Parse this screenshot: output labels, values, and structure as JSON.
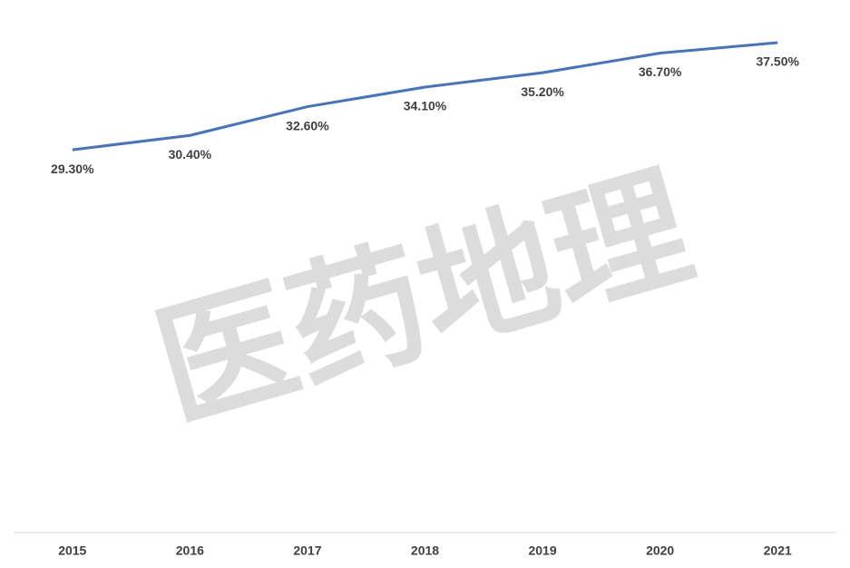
{
  "chart_data": {
    "type": "line",
    "watermark": "医药地理",
    "categories": [
      "2015",
      "2016",
      "2017",
      "2018",
      "2019",
      "2020",
      "2021"
    ],
    "values": [
      29.3,
      30.4,
      32.6,
      34.1,
      35.2,
      36.7,
      37.5
    ],
    "value_labels": [
      "29.30%",
      "30.40%",
      "32.60%",
      "34.10%",
      "35.20%",
      "36.70%",
      "37.50%"
    ],
    "color": "#4472c4",
    "ylim": [
      0,
      40
    ]
  }
}
